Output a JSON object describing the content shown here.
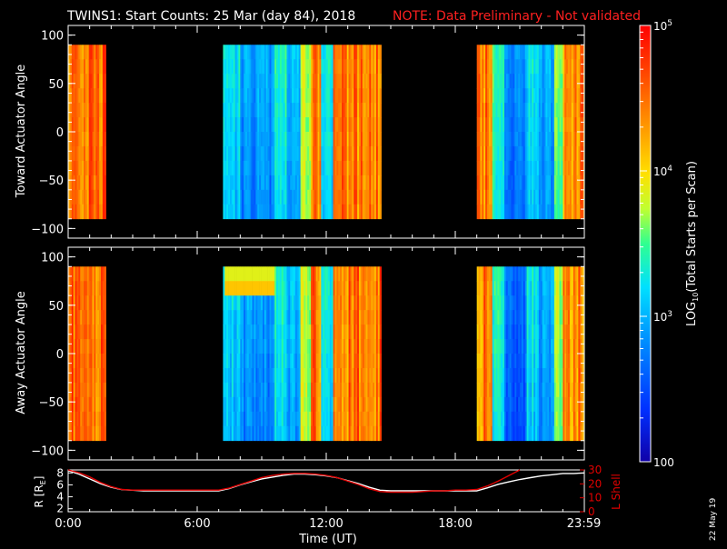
{
  "header": {
    "title": "TWINS1: Start Counts: 25 Mar (day  84), 2018",
    "note": "NOTE: Data Preliminary - Not validated"
  },
  "date_stamp": "22 May 19",
  "colors": {
    "background": "#000000",
    "text": "#ffffff",
    "note": "#ff2020",
    "lshell": "#e00000",
    "radius": "#ffffff"
  },
  "colorbar": {
    "label_prefix": "LOG",
    "label_sub": "10",
    "label_suffix": "(Total Starts per Scan)",
    "ticks": [
      {
        "value": 100,
        "base": "100",
        "exp": ""
      },
      {
        "value": 1000,
        "base": "10",
        "exp": "3"
      },
      {
        "value": 10000,
        "base": "10",
        "exp": "4"
      },
      {
        "value": 100000,
        "base": "10",
        "exp": "5"
      }
    ],
    "range": [
      100,
      100000
    ],
    "scale": "log"
  },
  "chart_data": [
    {
      "type": "heatmap",
      "ylabel": "Toward Actuator Angle",
      "ylim": [
        -110,
        110
      ],
      "yticks": [
        100,
        50,
        0,
        -50,
        -100
      ],
      "xlim": [
        0,
        24
      ],
      "data_y_range": [
        -90,
        90
      ],
      "data_intervals": [
        {
          "start": 0.0,
          "end": 1.8,
          "level": "high"
        },
        {
          "start": 7.2,
          "end": 14.6,
          "level": "mixed"
        },
        {
          "start": 19.0,
          "end": 24.0,
          "level": "mixed"
        }
      ]
    },
    {
      "type": "heatmap",
      "ylabel": "Away Actuator Angle",
      "ylim": [
        -110,
        110
      ],
      "yticks": [
        100,
        50,
        0,
        -50,
        -100
      ],
      "xlim": [
        0,
        24
      ],
      "data_y_range": [
        -90,
        90
      ],
      "data_intervals": [
        {
          "start": 0.0,
          "end": 1.8,
          "level": "high"
        },
        {
          "start": 7.2,
          "end": 14.6,
          "level": "mixed"
        },
        {
          "start": 19.0,
          "end": 24.0,
          "level": "mixed"
        }
      ]
    },
    {
      "type": "line",
      "xlabel": "Time (UT)",
      "ylabel_left": "R [R",
      "ylabel_left_sub": "E",
      "ylabel_left_end": "]",
      "ylabel_right": "L Shell",
      "ylim_left": [
        1.5,
        8.5
      ],
      "yticks_left": [
        8,
        6,
        4,
        2
      ],
      "ylim_right": [
        0,
        30
      ],
      "yticks_right": [
        30,
        20,
        10,
        0
      ],
      "xlim": [
        0,
        24
      ],
      "xticks": [
        0,
        6,
        12,
        18,
        23.98
      ],
      "xtick_labels": [
        "0:00",
        "6:00",
        "12:00",
        "18:00",
        "23:59"
      ],
      "series": [
        {
          "name": "R",
          "x": [
            0,
            0.5,
            1,
            1.5,
            2,
            2.5,
            3,
            3.5,
            4,
            4.5,
            5,
            5.5,
            6,
            6.5,
            7,
            7.5,
            8,
            8.5,
            9,
            9.5,
            10,
            10.5,
            11,
            11.5,
            12,
            12.5,
            13,
            13.5,
            14,
            14.5,
            15,
            15.5,
            16,
            16.5,
            17,
            17.5,
            18,
            18.5,
            19,
            19.5,
            20,
            20.5,
            21,
            21.5,
            22,
            22.5,
            23,
            23.5,
            24
          ],
          "values": [
            8.4,
            7.8,
            7.0,
            6.2,
            5.6,
            5.2,
            5.1,
            5.0,
            5.0,
            5.0,
            5.0,
            5.0,
            5.0,
            5.0,
            5.0,
            5.4,
            6.0,
            6.5,
            7.0,
            7.3,
            7.6,
            7.8,
            7.8,
            7.7,
            7.5,
            7.2,
            6.7,
            6.2,
            5.6,
            5.1,
            5.0,
            5.0,
            5.0,
            5.0,
            5.0,
            5.0,
            5.0,
            5.0,
            5.0,
            5.5,
            6.1,
            6.5,
            6.9,
            7.2,
            7.5,
            7.7,
            7.9,
            7.9,
            8.0
          ]
        },
        {
          "name": "L Shell",
          "x": [
            0,
            0.5,
            1,
            1.5,
            2,
            2.5,
            3,
            3.5,
            4,
            4.5,
            5,
            5.5,
            6,
            6.5,
            7,
            7.5,
            8,
            8.5,
            9,
            9.5,
            10,
            10.5,
            11,
            11.5,
            12,
            12.5,
            13,
            13.5,
            14,
            14.5,
            15,
            15.5,
            16,
            16.5,
            17,
            17.5,
            18,
            18.5,
            19,
            19.5,
            20,
            20.5,
            21
          ],
          "values": [
            30,
            28,
            25,
            21,
            18,
            16,
            15.5,
            15.5,
            15.5,
            15.5,
            15.5,
            15.5,
            15.5,
            15.5,
            15.5,
            17,
            19.5,
            22,
            24.5,
            26,
            27,
            27.5,
            27.5,
            27,
            26,
            24.5,
            22,
            19.5,
            16.5,
            14.5,
            14,
            14,
            14,
            14.5,
            15,
            15,
            15.5,
            15.5,
            16,
            18.5,
            22,
            26,
            30
          ]
        }
      ]
    }
  ]
}
